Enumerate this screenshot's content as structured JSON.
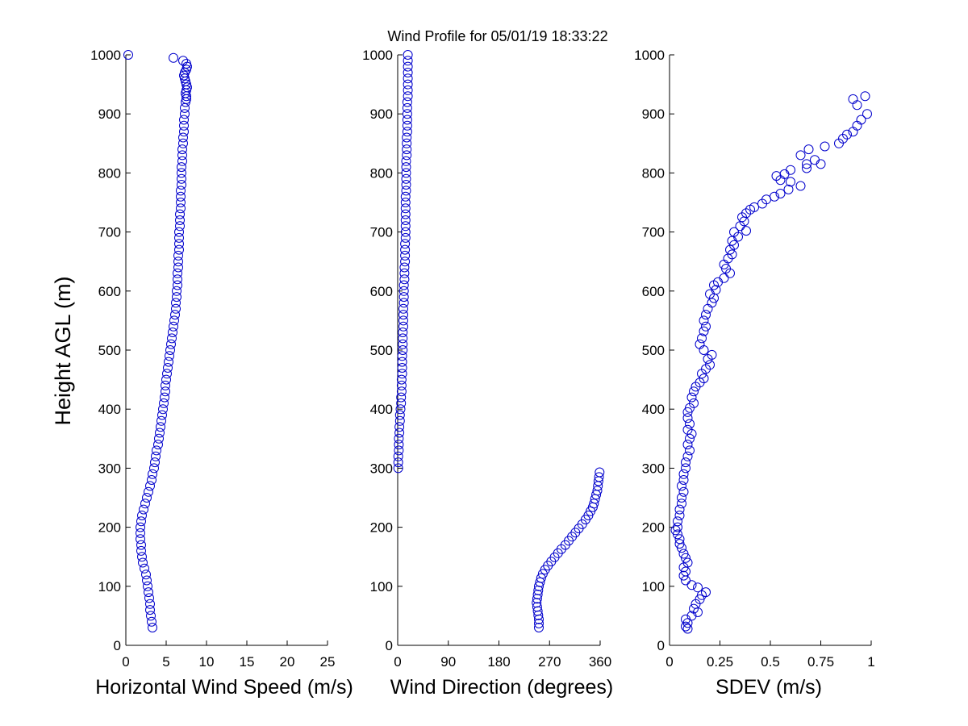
{
  "title": "Wind Profile for  05/01/19 18:33:22",
  "ylabel": "Height AGL (m)",
  "chart_data": [
    {
      "type": "scatter",
      "name": "speed",
      "xlabel": "Horizontal Wind Speed (m/s)",
      "ylabel": "Height AGL (m)",
      "xlim": [
        0,
        25
      ],
      "ylim": [
        0,
        1000
      ],
      "xticks": [
        0,
        5,
        10,
        15,
        20,
        25
      ],
      "xtick_labels": [
        "0",
        "5",
        "10",
        "15",
        "20",
        "25"
      ],
      "yticks": [
        0,
        100,
        200,
        300,
        400,
        500,
        600,
        700,
        800,
        900,
        1000
      ],
      "ytick_labels": [
        "0",
        "100",
        "200",
        "300",
        "400",
        "500",
        "600",
        "700",
        "800",
        "900",
        "1000"
      ],
      "marker_color": "#0000cc",
      "points": [
        [
          0.3,
          1000
        ],
        [
          5.9,
          995
        ],
        [
          7.1,
          990
        ],
        [
          7.5,
          985
        ],
        [
          7.6,
          980
        ],
        [
          7.5,
          975
        ],
        [
          7.3,
          970
        ],
        [
          7.2,
          965
        ],
        [
          7.3,
          960
        ],
        [
          7.4,
          955
        ],
        [
          7.5,
          950
        ],
        [
          7.6,
          945
        ],
        [
          7.5,
          940
        ],
        [
          7.4,
          935
        ],
        [
          7.5,
          930
        ],
        [
          7.5,
          925
        ],
        [
          7.4,
          920
        ],
        [
          7.3,
          910
        ],
        [
          7.3,
          900
        ],
        [
          7.2,
          890
        ],
        [
          7.2,
          880
        ],
        [
          7.2,
          870
        ],
        [
          7.1,
          860
        ],
        [
          7.1,
          850
        ],
        [
          7.0,
          840
        ],
        [
          7.0,
          830
        ],
        [
          7.0,
          820
        ],
        [
          6.9,
          810
        ],
        [
          6.9,
          800
        ],
        [
          6.9,
          790
        ],
        [
          6.9,
          780
        ],
        [
          6.8,
          770
        ],
        [
          6.8,
          760
        ],
        [
          6.8,
          750
        ],
        [
          6.8,
          740
        ],
        [
          6.7,
          730
        ],
        [
          6.7,
          720
        ],
        [
          6.7,
          710
        ],
        [
          6.6,
          700
        ],
        [
          6.6,
          690
        ],
        [
          6.6,
          680
        ],
        [
          6.6,
          670
        ],
        [
          6.5,
          660
        ],
        [
          6.5,
          650
        ],
        [
          6.5,
          640
        ],
        [
          6.4,
          630
        ],
        [
          6.4,
          620
        ],
        [
          6.4,
          610
        ],
        [
          6.3,
          600
        ],
        [
          6.3,
          590
        ],
        [
          6.2,
          580
        ],
        [
          6.2,
          570
        ],
        [
          6.1,
          560
        ],
        [
          6.0,
          550
        ],
        [
          5.9,
          540
        ],
        [
          5.8,
          530
        ],
        [
          5.7,
          520
        ],
        [
          5.6,
          510
        ],
        [
          5.5,
          500
        ],
        [
          5.4,
          490
        ],
        [
          5.3,
          480
        ],
        [
          5.2,
          470
        ],
        [
          5.1,
          460
        ],
        [
          5.0,
          450
        ],
        [
          4.9,
          440
        ],
        [
          4.9,
          430
        ],
        [
          4.8,
          420
        ],
        [
          4.7,
          410
        ],
        [
          4.6,
          400
        ],
        [
          4.5,
          390
        ],
        [
          4.4,
          380
        ],
        [
          4.3,
          370
        ],
        [
          4.2,
          360
        ],
        [
          4.1,
          350
        ],
        [
          4.0,
          340
        ],
        [
          3.8,
          330
        ],
        [
          3.7,
          320
        ],
        [
          3.6,
          310
        ],
        [
          3.5,
          300
        ],
        [
          3.3,
          290
        ],
        [
          3.2,
          280
        ],
        [
          3.0,
          270
        ],
        [
          2.8,
          260
        ],
        [
          2.6,
          250
        ],
        [
          2.4,
          240
        ],
        [
          2.2,
          230
        ],
        [
          2.0,
          220
        ],
        [
          1.9,
          210
        ],
        [
          1.8,
          200
        ],
        [
          1.8,
          190
        ],
        [
          1.8,
          180
        ],
        [
          1.9,
          170
        ],
        [
          1.9,
          160
        ],
        [
          2.0,
          150
        ],
        [
          2.1,
          140
        ],
        [
          2.3,
          130
        ],
        [
          2.5,
          120
        ],
        [
          2.6,
          110
        ],
        [
          2.7,
          100
        ],
        [
          2.8,
          90
        ],
        [
          2.9,
          80
        ],
        [
          3.0,
          70
        ],
        [
          3.0,
          60
        ],
        [
          3.1,
          50
        ],
        [
          3.2,
          40
        ],
        [
          3.3,
          30
        ]
      ]
    },
    {
      "type": "scatter",
      "name": "direction",
      "xlabel": "Wind Direction (degrees)",
      "xlim": [
        0,
        360
      ],
      "ylim": [
        0,
        1000
      ],
      "xticks": [
        0,
        90,
        180,
        270,
        360
      ],
      "xtick_labels": [
        "0",
        "90",
        "180",
        "270",
        "360"
      ],
      "yticks": [
        0,
        100,
        200,
        300,
        400,
        500,
        600,
        700,
        800,
        900,
        1000
      ],
      "ytick_labels": [
        "0",
        "100",
        "200",
        "300",
        "400",
        "500",
        "600",
        "700",
        "800",
        "900",
        "1000"
      ],
      "marker_color": "#0000cc",
      "points": [
        [
          18,
          1000
        ],
        [
          18,
          990
        ],
        [
          18,
          980
        ],
        [
          18,
          970
        ],
        [
          18,
          960
        ],
        [
          18,
          950
        ],
        [
          18,
          940
        ],
        [
          18,
          930
        ],
        [
          17,
          920
        ],
        [
          17,
          910
        ],
        [
          17,
          900
        ],
        [
          17,
          890
        ],
        [
          17,
          880
        ],
        [
          17,
          870
        ],
        [
          16,
          860
        ],
        [
          16,
          850
        ],
        [
          16,
          840
        ],
        [
          16,
          830
        ],
        [
          15,
          820
        ],
        [
          15,
          810
        ],
        [
          15,
          800
        ],
        [
          15,
          790
        ],
        [
          15,
          780
        ],
        [
          15,
          770
        ],
        [
          14,
          760
        ],
        [
          14,
          750
        ],
        [
          14,
          740
        ],
        [
          14,
          730
        ],
        [
          14,
          720
        ],
        [
          14,
          710
        ],
        [
          14,
          700
        ],
        [
          14,
          690
        ],
        [
          13,
          680
        ],
        [
          13,
          670
        ],
        [
          13,
          660
        ],
        [
          13,
          650
        ],
        [
          12,
          640
        ],
        [
          12,
          630
        ],
        [
          12,
          620
        ],
        [
          11,
          610
        ],
        [
          11,
          600
        ],
        [
          11,
          590
        ],
        [
          11,
          580
        ],
        [
          10,
          570
        ],
        [
          10,
          560
        ],
        [
          10,
          550
        ],
        [
          10,
          540
        ],
        [
          9,
          530
        ],
        [
          9,
          520
        ],
        [
          9,
          510
        ],
        [
          9,
          500
        ],
        [
          8,
          490
        ],
        [
          8,
          480
        ],
        [
          8,
          470
        ],
        [
          8,
          460
        ],
        [
          7,
          450
        ],
        [
          7,
          440
        ],
        [
          7,
          430
        ],
        [
          6,
          420
        ],
        [
          6,
          410
        ],
        [
          5,
          400
        ],
        [
          4,
          390
        ],
        [
          4,
          380
        ],
        [
          3,
          370
        ],
        [
          3,
          360
        ],
        [
          2,
          350
        ],
        [
          2,
          340
        ],
        [
          2,
          330
        ],
        [
          1,
          320
        ],
        [
          1,
          310
        ],
        [
          1,
          300
        ],
        [
          359,
          293
        ],
        [
          358,
          285
        ],
        [
          357,
          278
        ],
        [
          356,
          270
        ],
        [
          355,
          262
        ],
        [
          353,
          255
        ],
        [
          351,
          248
        ],
        [
          349,
          240
        ],
        [
          347,
          234
        ],
        [
          343,
          227
        ],
        [
          339,
          220
        ],
        [
          334,
          213
        ],
        [
          328,
          205
        ],
        [
          322,
          198
        ],
        [
          316,
          191
        ],
        [
          310,
          184
        ],
        [
          304,
          177
        ],
        [
          298,
          170
        ],
        [
          291,
          163
        ],
        [
          285,
          156
        ],
        [
          279,
          149
        ],
        [
          273,
          142
        ],
        [
          267,
          135
        ],
        [
          262,
          128
        ],
        [
          258,
          121
        ],
        [
          255,
          114
        ],
        [
          253,
          107
        ],
        [
          251,
          100
        ],
        [
          250,
          93
        ],
        [
          249,
          86
        ],
        [
          248,
          79
        ],
        [
          247,
          72
        ],
        [
          248,
          65
        ],
        [
          249,
          58
        ],
        [
          250,
          51
        ],
        [
          251,
          44
        ],
        [
          251,
          37
        ],
        [
          251,
          30
        ]
      ]
    },
    {
      "type": "scatter",
      "name": "sdev",
      "xlabel": "SDEV  (m/s)",
      "xlim": [
        0,
        1
      ],
      "ylim": [
        0,
        1000
      ],
      "xticks": [
        0,
        0.25,
        0.5,
        0.75,
        1
      ],
      "xtick_labels": [
        "0",
        "0.25",
        "0.5",
        "0.75",
        "1"
      ],
      "yticks": [
        0,
        100,
        200,
        300,
        400,
        500,
        600,
        700,
        800,
        900,
        1000
      ],
      "ytick_labels": [
        "0",
        "100",
        "200",
        "300",
        "400",
        "500",
        "600",
        "700",
        "800",
        "900",
        "1000"
      ],
      "marker_color": "#0000cc",
      "points": [
        [
          0.97,
          930
        ],
        [
          0.91,
          925
        ],
        [
          0.93,
          915
        ],
        [
          0.98,
          900
        ],
        [
          0.95,
          890
        ],
        [
          0.93,
          880
        ],
        [
          0.91,
          870
        ],
        [
          0.88,
          865
        ],
        [
          0.86,
          858
        ],
        [
          0.84,
          850
        ],
        [
          0.77,
          845
        ],
        [
          0.69,
          840
        ],
        [
          0.65,
          830
        ],
        [
          0.72,
          822
        ],
        [
          0.68,
          815
        ],
        [
          0.75,
          815
        ],
        [
          0.68,
          808
        ],
        [
          0.6,
          805
        ],
        [
          0.57,
          798
        ],
        [
          0.53,
          795
        ],
        [
          0.55,
          788
        ],
        [
          0.6,
          785
        ],
        [
          0.65,
          778
        ],
        [
          0.59,
          772
        ],
        [
          0.55,
          765
        ],
        [
          0.52,
          760
        ],
        [
          0.48,
          755
        ],
        [
          0.46,
          748
        ],
        [
          0.42,
          742
        ],
        [
          0.4,
          738
        ],
        [
          0.38,
          732
        ],
        [
          0.36,
          725
        ],
        [
          0.37,
          718
        ],
        [
          0.35,
          710
        ],
        [
          0.38,
          702
        ],
        [
          0.32,
          700
        ],
        [
          0.34,
          692
        ],
        [
          0.31,
          685
        ],
        [
          0.32,
          678
        ],
        [
          0.3,
          670
        ],
        [
          0.31,
          662
        ],
        [
          0.29,
          655
        ],
        [
          0.27,
          645
        ],
        [
          0.28,
          638
        ],
        [
          0.3,
          630
        ],
        [
          0.27,
          622
        ],
        [
          0.24,
          615
        ],
        [
          0.22,
          610
        ],
        [
          0.23,
          602
        ],
        [
          0.2,
          595
        ],
        [
          0.22,
          588
        ],
        [
          0.21,
          580
        ],
        [
          0.19,
          570
        ],
        [
          0.18,
          560
        ],
        [
          0.17,
          550
        ],
        [
          0.18,
          540
        ],
        [
          0.17,
          532
        ],
        [
          0.16,
          520
        ],
        [
          0.15,
          510
        ],
        [
          0.17,
          500
        ],
        [
          0.21,
          492
        ],
        [
          0.19,
          485
        ],
        [
          0.2,
          475
        ],
        [
          0.18,
          468
        ],
        [
          0.16,
          460
        ],
        [
          0.17,
          452
        ],
        [
          0.15,
          445
        ],
        [
          0.13,
          438
        ],
        [
          0.12,
          430
        ],
        [
          0.11,
          420
        ],
        [
          0.12,
          410
        ],
        [
          0.1,
          402
        ],
        [
          0.09,
          395
        ],
        [
          0.09,
          385
        ],
        [
          0.1,
          375
        ],
        [
          0.09,
          365
        ],
        [
          0.11,
          358
        ],
        [
          0.1,
          350
        ],
        [
          0.09,
          340
        ],
        [
          0.1,
          330
        ],
        [
          0.09,
          320
        ],
        [
          0.08,
          310
        ],
        [
          0.08,
          300
        ],
        [
          0.07,
          290
        ],
        [
          0.07,
          280
        ],
        [
          0.06,
          270
        ],
        [
          0.07,
          260
        ],
        [
          0.06,
          250
        ],
        [
          0.06,
          240
        ],
        [
          0.05,
          230
        ],
        [
          0.05,
          220
        ],
        [
          0.04,
          210
        ],
        [
          0.04,
          200
        ],
        [
          0.03,
          195
        ],
        [
          0.04,
          188
        ],
        [
          0.05,
          180
        ],
        [
          0.05,
          172
        ],
        [
          0.06,
          165
        ],
        [
          0.07,
          155
        ],
        [
          0.08,
          148
        ],
        [
          0.09,
          140
        ],
        [
          0.07,
          132
        ],
        [
          0.08,
          125
        ],
        [
          0.07,
          118
        ],
        [
          0.08,
          110
        ],
        [
          0.11,
          102
        ],
        [
          0.14,
          98
        ],
        [
          0.18,
          90
        ],
        [
          0.16,
          85
        ],
        [
          0.15,
          78
        ],
        [
          0.13,
          70
        ],
        [
          0.12,
          62
        ],
        [
          0.14,
          56
        ],
        [
          0.11,
          50
        ],
        [
          0.08,
          44
        ],
        [
          0.09,
          38
        ],
        [
          0.08,
          32
        ],
        [
          0.09,
          28
        ]
      ]
    }
  ]
}
